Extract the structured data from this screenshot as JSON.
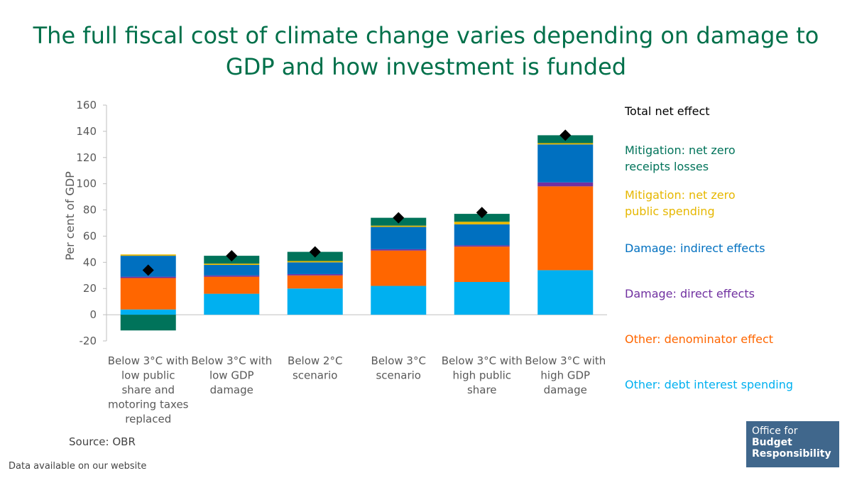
{
  "title": "The full fiscal cost of climate change varies depending on damage to GDP and how investment is funded",
  "source": "Source: OBR",
  "website_note": "Data available on our website",
  "logo": {
    "line1": "Office for",
    "line2": "Budget",
    "line3": "Responsibility"
  },
  "chart_data": {
    "type": "bar",
    "stacked": true,
    "ylabel": "Per cent of GDP",
    "ylim": [
      -20,
      160
    ],
    "yticks": [
      -20,
      0,
      20,
      40,
      60,
      80,
      100,
      120,
      140,
      160
    ],
    "categories": [
      [
        "Below 3°C with",
        "low public",
        "share and",
        "motoring taxes",
        "replaced"
      ],
      [
        "Below 3°C with",
        "low  GDP",
        "damage"
      ],
      [
        "Below 2°C",
        "scenario"
      ],
      [
        "Below 3°C",
        "scenario"
      ],
      [
        "Below 3°C with",
        "high public",
        "share"
      ],
      [
        "Below 3°C with",
        "high GDP",
        "damage"
      ]
    ],
    "series": [
      {
        "name": "Other: debt interest spending",
        "color": "#00b0f0",
        "values": [
          4,
          16,
          20,
          22,
          25,
          34
        ]
      },
      {
        "name": "Other: denominator effect",
        "color": "#ff6600",
        "values": [
          24,
          13,
          10,
          27,
          27,
          64
        ]
      },
      {
        "name": "Damage: direct effects",
        "color": "#7030a0",
        "values": [
          1,
          1,
          1,
          1,
          1,
          3
        ]
      },
      {
        "name": "Damage: indirect effects",
        "color": "#0070c0",
        "values": [
          16,
          8,
          9,
          17,
          16,
          29
        ]
      },
      {
        "name": "Mitigation: net zero public spending",
        "color": "#e6b700",
        "values": [
          1,
          1,
          1,
          1,
          2,
          1
        ]
      },
      {
        "name": "Mitigation: net zero receipts losses",
        "color": "#00735a",
        "values": [
          -12,
          6,
          7,
          6,
          6,
          6
        ]
      }
    ],
    "total_net_effect": {
      "name": "Total net effect",
      "values": [
        34,
        45,
        48,
        74,
        78,
        137
      ]
    },
    "legend": [
      {
        "label": "Total net effect",
        "color": "#000000",
        "lines": [
          "Total net effect"
        ]
      },
      {
        "label": "Mitigation: net zero receipts losses",
        "color": "#00735a",
        "lines": [
          "Mitigation: net zero",
          "receipts losses"
        ]
      },
      {
        "label": "Mitigation: net zero public spending",
        "color": "#e6b700",
        "lines": [
          "Mitigation: net zero",
          "public spending"
        ]
      },
      {
        "label": "Damage: indirect effects",
        "color": "#0070c0",
        "lines": [
          "Damage: indirect effects"
        ]
      },
      {
        "label": "Damage: direct effects",
        "color": "#7030a0",
        "lines": [
          "Damage: direct effects"
        ]
      },
      {
        "label": "Other: denominator effect",
        "color": "#ff6600",
        "lines": [
          "Other: denominator effect"
        ]
      },
      {
        "label": "Other: debt interest spending",
        "color": "#00b0f0",
        "lines": [
          "Other: debt interest spending"
        ]
      }
    ]
  }
}
